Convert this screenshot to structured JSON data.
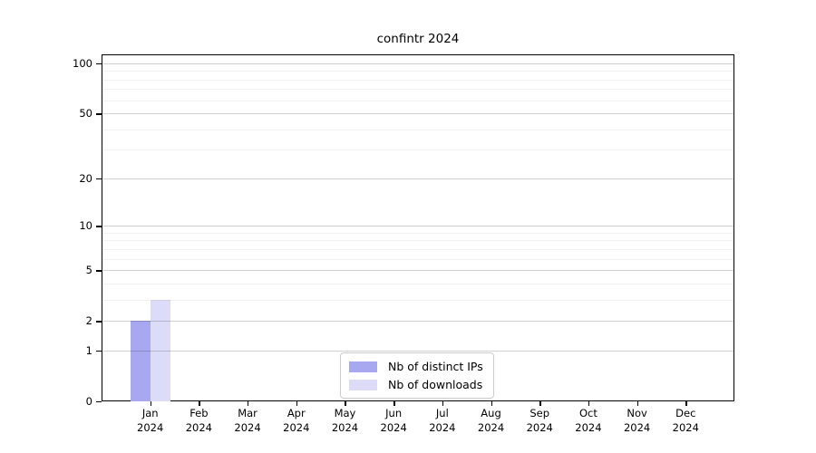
{
  "title": "confintr 2024",
  "chart_data": {
    "type": "bar",
    "title": "confintr 2024",
    "year_label": "2024",
    "months": [
      "Jan",
      "Feb",
      "Mar",
      "Apr",
      "May",
      "Jun",
      "Jul",
      "Aug",
      "Sep",
      "Oct",
      "Nov",
      "Dec"
    ],
    "series": [
      {
        "name": "Nb of distinct IPs",
        "color": "#a8a8f0",
        "values": [
          2,
          0,
          0,
          0,
          0,
          0,
          0,
          0,
          0,
          0,
          0,
          0
        ]
      },
      {
        "name": "Nb of downloads",
        "color": "#dcdcf8",
        "values": [
          3,
          0,
          0,
          0,
          0,
          0,
          0,
          0,
          0,
          0,
          0,
          0
        ]
      }
    ],
    "y_axis": {
      "scale": "log1p",
      "tick_values": [
        100,
        50,
        20,
        10,
        5,
        2,
        1,
        0
      ],
      "tick_labels": [
        "100",
        "50",
        "20",
        "10",
        "5",
        "2",
        "1",
        "0"
      ],
      "minor_gridline_values": [
        3,
        4,
        6,
        7,
        8,
        9,
        30,
        40,
        60,
        70,
        80,
        90
      ],
      "range": [
        0,
        110
      ],
      "grid": true
    },
    "legend": {
      "position": "bottom-center",
      "entries": [
        "Nb of distinct IPs",
        "Nb of downloads"
      ]
    }
  },
  "colors": {
    "background": "#ffffff",
    "spine": "#000000",
    "bar_distinct_ips": "#a8a8f0",
    "bar_downloads": "#dcdcf8"
  }
}
